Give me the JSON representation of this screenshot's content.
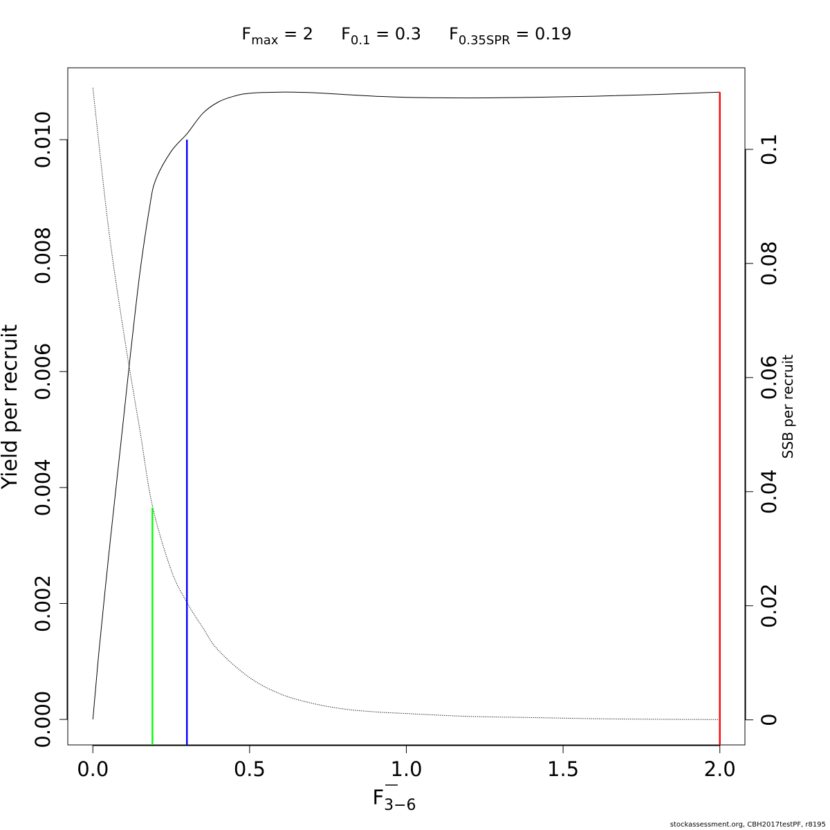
{
  "chart_data": {
    "type": "line",
    "title_parts": [
      {
        "main": "F",
        "sub": "max",
        "rest": " = 2"
      },
      {
        "main": "F",
        "sub": "0.1",
        "rest": " = 0.3"
      },
      {
        "main": "F",
        "sub": "0.35SPR",
        "rest": " = 0.19"
      }
    ],
    "xlabel": {
      "main": "F",
      "sub": "3−6",
      "overbar": true
    },
    "ylabel_left": "Yield per recruit",
    "ylabel_right": "SSB per recruit",
    "xlim": [
      -0.08,
      2.08
    ],
    "ylim_left": [
      -0.00044,
      0.01124
    ],
    "ylim_right": [
      -0.0044,
      0.1143
    ],
    "x_ticks": [
      {
        "value": 0.0,
        "label": "0.0"
      },
      {
        "value": 0.5,
        "label": "0.5"
      },
      {
        "value": 1.0,
        "label": "1.0"
      },
      {
        "value": 1.5,
        "label": "1.5"
      },
      {
        "value": 2.0,
        "label": "2.0"
      }
    ],
    "y_left_ticks": [
      {
        "value": 0.0,
        "label": "0.000"
      },
      {
        "value": 0.002,
        "label": "0.002"
      },
      {
        "value": 0.004,
        "label": "0.004"
      },
      {
        "value": 0.006,
        "label": "0.006"
      },
      {
        "value": 0.008,
        "label": "0.008"
      },
      {
        "value": 0.01,
        "label": "0.010"
      }
    ],
    "y_right_ticks": [
      {
        "value": 0.0,
        "label": "0"
      },
      {
        "value": 0.02,
        "label": "0.02"
      },
      {
        "value": 0.04,
        "label": "0.04"
      },
      {
        "value": 0.06,
        "label": "0.06"
      },
      {
        "value": 0.08,
        "label": "0.08"
      },
      {
        "value": 0.1,
        "label": "0.1"
      }
    ],
    "series": [
      {
        "axis": "left",
        "color": "#000000",
        "dash": "solid",
        "x": [
          0,
          0.02,
          0.05,
          0.08,
          0.1,
          0.12,
          0.15,
          0.18,
          0.2,
          0.25,
          0.3,
          0.35,
          0.4,
          0.45,
          0.5,
          0.6,
          0.7,
          0.8,
          0.9,
          1.0,
          1.2,
          1.4,
          1.6,
          1.8,
          2.0
        ],
        "y": [
          0,
          0.0012,
          0.0028,
          0.0043,
          0.0053,
          0.0063,
          0.0077,
          0.0088,
          0.0093,
          0.0098,
          0.0101,
          0.01045,
          0.01065,
          0.01075,
          0.0108,
          0.01082,
          0.01081,
          0.01078,
          0.01075,
          0.01073,
          0.01072,
          0.01073,
          0.01075,
          0.01078,
          0.01082
        ]
      },
      {
        "axis": "right",
        "color": "#000000",
        "dash": "dotted",
        "x": [
          0,
          0.05,
          0.1,
          0.15,
          0.19,
          0.25,
          0.3,
          0.35,
          0.4,
          0.5,
          0.6,
          0.7,
          0.8,
          0.9,
          1.0,
          1.2,
          1.4,
          1.6,
          1.8,
          2.0
        ],
        "y": [
          0.1108,
          0.0862,
          0.0673,
          0.0508,
          0.0375,
          0.0262,
          0.0206,
          0.0162,
          0.0122,
          0.0074,
          0.0045,
          0.0029,
          0.0019,
          0.0014,
          0.0011,
          0.0006,
          0.0004,
          0.0002,
          0.0001,
          5e-05
        ]
      }
    ],
    "vlines": [
      {
        "name": "F0.35SPR",
        "x": 0.19,
        "y_top": 0.00365,
        "axis": "left",
        "color": "#00ff00"
      },
      {
        "name": "F0.1",
        "x": 0.3,
        "y_top": 0.01,
        "axis": "left",
        "color": "#0000ff"
      },
      {
        "name": "Fmax",
        "x": 2.0,
        "y_top": 0.01082,
        "axis": "left",
        "color": "#ff0000"
      }
    ],
    "grid": false,
    "legend": "none"
  },
  "footer": "stockassessment.org, CBH2017testPF, r8195"
}
